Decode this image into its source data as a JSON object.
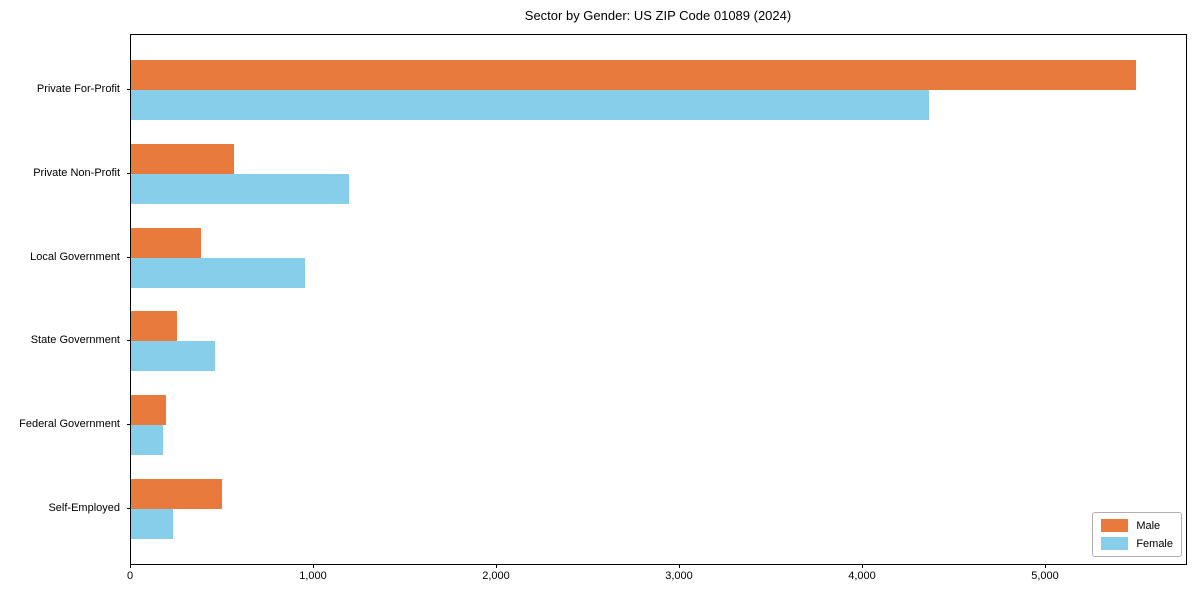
{
  "chart_data": {
    "type": "bar",
    "orientation": "horizontal",
    "title": "Sector by Gender: US ZIP Code 01089 (2024)",
    "categories": [
      "Private For-Profit",
      "Private Non-Profit",
      "Local Government",
      "State Government",
      "Federal Government",
      "Self-Employed"
    ],
    "series": [
      {
        "name": "Male",
        "color": "#e87a3e",
        "values": [
          5490,
          565,
          380,
          250,
          190,
          495
        ]
      },
      {
        "name": "Female",
        "color": "#87ceeb",
        "values": [
          4360,
          1190,
          950,
          460,
          175,
          230
        ]
      }
    ],
    "xlabel": "",
    "ylabel": "",
    "xlim": [
      0,
      5765
    ],
    "xticks": [
      0,
      1000,
      2000,
      3000,
      4000,
      5000
    ],
    "xtick_labels": [
      "0",
      "1,000",
      "2,000",
      "3,000",
      "4,000",
      "5,000"
    ],
    "grid": false,
    "legend_position": "lower right",
    "axis_color": "#000000",
    "background_color": "#ffffff"
  }
}
